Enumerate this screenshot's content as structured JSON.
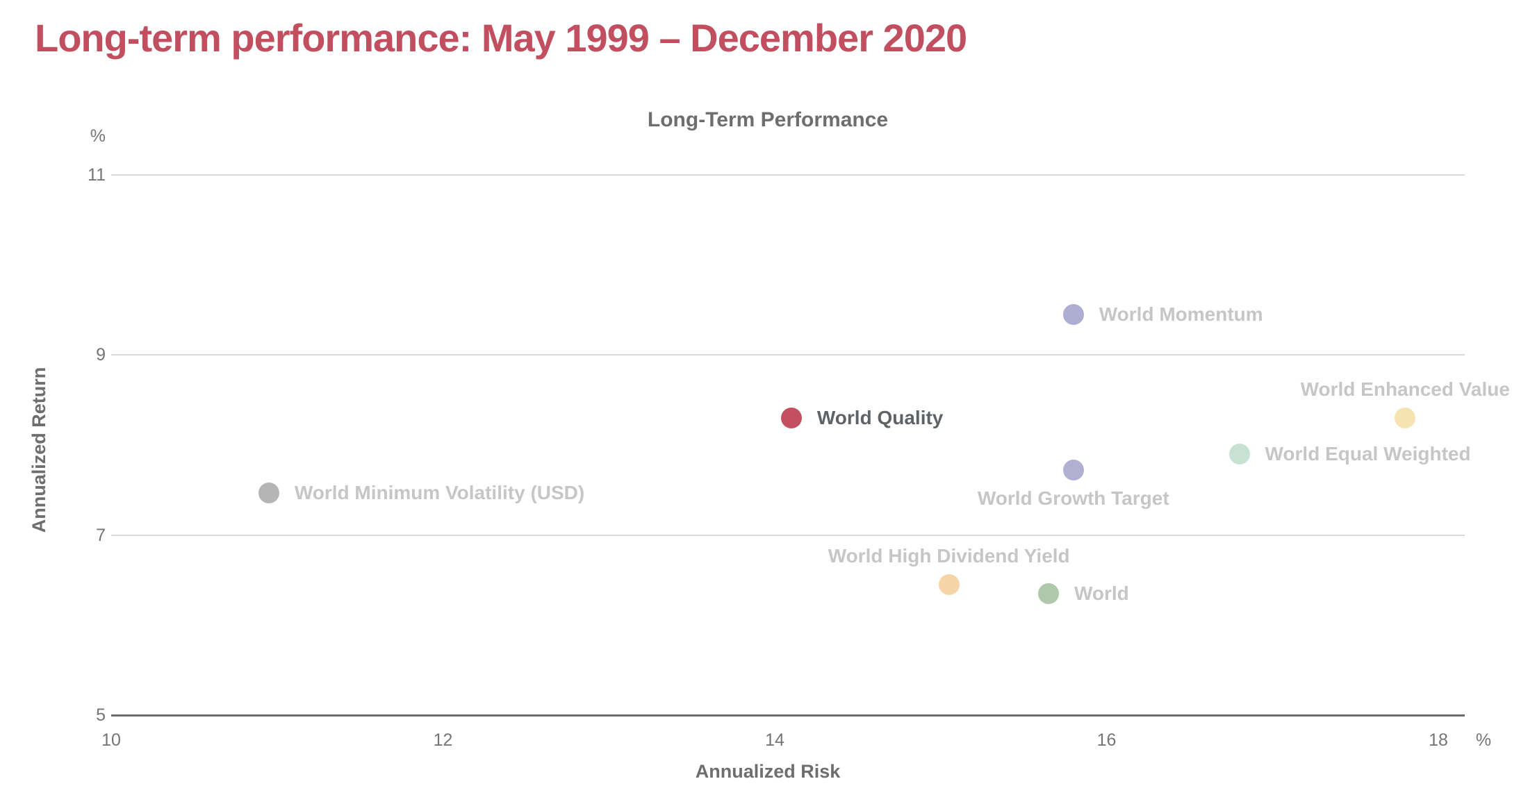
{
  "page": {
    "title": "Long-term performance: May 1999 – December 2020",
    "title_color": "#c14f60"
  },
  "chart_data": {
    "type": "scatter",
    "title": "Long-Term Performance",
    "xlabel": "Annualized Risk",
    "ylabel": "Annualized Return",
    "x_unit": "%",
    "y_unit": "%",
    "xlim": [
      10,
      18
    ],
    "ylim": [
      5,
      11
    ],
    "x_ticks": [
      10,
      12,
      14,
      16,
      18
    ],
    "y_ticks": [
      11,
      9,
      7,
      5
    ],
    "grid": "horizontal gridlines only, darker baseline at y=5",
    "legend_position": "none (labels next to points)",
    "points": [
      {
        "name": "World Momentum",
        "x": 15.8,
        "y": 9.45,
        "color": "#aeadd2",
        "label_position": "right",
        "emphasis": false
      },
      {
        "name": "World Quality",
        "x": 14.1,
        "y": 8.3,
        "color": "#c4505f",
        "label_position": "right",
        "emphasis": true
      },
      {
        "name": "World Enhanced Value",
        "x": 17.8,
        "y": 8.3,
        "color": "#f5e3b2",
        "label_position": "above",
        "emphasis": false
      },
      {
        "name": "World Equal Weighted",
        "x": 16.8,
        "y": 7.9,
        "color": "#c7e1d3",
        "label_position": "right",
        "emphasis": false
      },
      {
        "name": "World Growth Target",
        "x": 15.8,
        "y": 7.72,
        "color": "#b1b0d3",
        "label_position": "below",
        "emphasis": false
      },
      {
        "name": "World Minimum Volatility (USD)",
        "x": 10.95,
        "y": 7.47,
        "color": "#b5b5b5",
        "label_position": "right",
        "emphasis": false
      },
      {
        "name": "World High Dividend Yield",
        "x": 15.05,
        "y": 6.45,
        "color": "#f5d5a7",
        "label_position": "above",
        "emphasis": false
      },
      {
        "name": "World",
        "x": 15.65,
        "y": 6.35,
        "color": "#afc8ab",
        "label_position": "right",
        "emphasis": false
      }
    ],
    "colors": {
      "gridline": "#d9d9d9",
      "axis_line": "#6b6b6b",
      "tick_label": "#757575",
      "axis_title": "#6e6e6e",
      "label_muted": "#c6c6c6",
      "label_emphasis": "#5f6368"
    }
  }
}
